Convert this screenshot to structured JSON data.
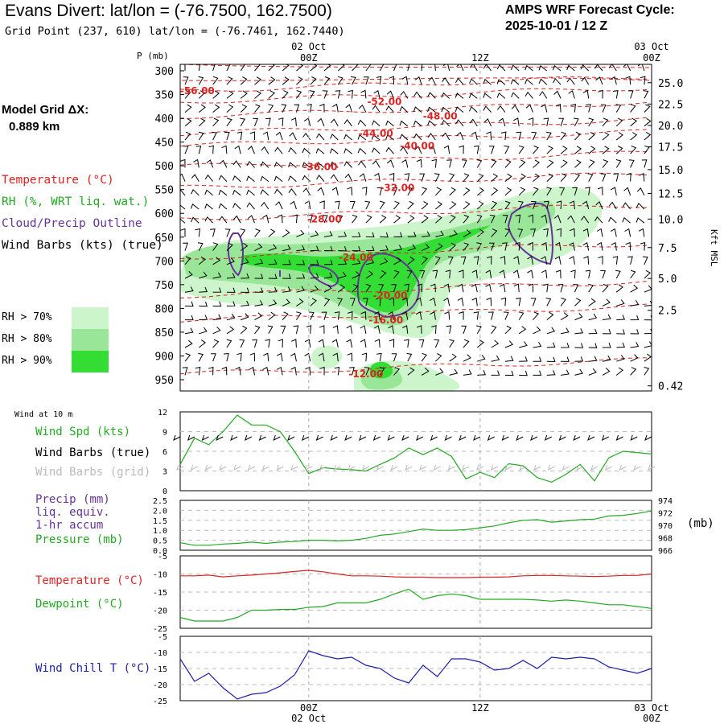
{
  "header": {
    "title": "Evans Divert:  lat/lon = (-76.7500, 162.7500)",
    "subtitle": "Grid Point (237, 610) lat/lon = (-76.7461, 162.7440)",
    "cycle_line1": "AMPS WRF Forecast Cycle:",
    "cycle_line2": "2025-10-01 / 12  Z"
  },
  "model_grid": {
    "label": "Model Grid ΔX:",
    "value": "0.889 km"
  },
  "legend": {
    "temperature": "Temperature (°C)",
    "rh": "RH (%, WRT liq. wat.)",
    "cloud": "Cloud/Precip Outline",
    "wind": "Wind Barbs (kts) (true)",
    "rh_levels": [
      "RH > 70%",
      "RH > 80%",
      "RH > 90%"
    ],
    "rh_colors": [
      "#ccf5cc",
      "#99e699",
      "#33dd33"
    ]
  },
  "colors": {
    "temperature": "#dd2222",
    "rh": "#22aa22",
    "cloud": "#663399",
    "pressure": "#22aa22",
    "windchill": "#1f1fa8",
    "grid": "#888888"
  },
  "time_axis": {
    "top_labels": [
      {
        "t": 0,
        "upper": "02 Oct",
        "lower": "00Z"
      },
      {
        "t": 12,
        "upper": "",
        "lower": "12Z"
      },
      {
        "t": 24,
        "upper": "03 Oct",
        "lower": "00Z"
      }
    ],
    "bottom_labels": [
      {
        "t": 0,
        "upper": "00Z",
        "lower": "02 Oct"
      },
      {
        "t": 12,
        "upper": "12Z",
        "lower": ""
      },
      {
        "t": 24,
        "upper": "03 Oct",
        "lower": "00Z"
      }
    ]
  },
  "chart_data": [
    {
      "type": "contour",
      "name": "cross-section",
      "x": "forecast hour (-9 to 24)",
      "y_left_title": "P (mb)",
      "y_left_ticks": [
        300,
        350,
        400,
        450,
        500,
        550,
        600,
        650,
        700,
        750,
        800,
        850,
        900,
        950
      ],
      "y_right_title": "Kft MSL",
      "y_right_ticks": [
        {
          "p": 325,
          "label": "25.0"
        },
        {
          "p": 370,
          "label": "22.5"
        },
        {
          "p": 415,
          "label": "20.0"
        },
        {
          "p": 460,
          "label": "17.5"
        },
        {
          "p": 508,
          "label": "15.0"
        },
        {
          "p": 558,
          "label": "12.5"
        },
        {
          "p": 612,
          "label": "10.0"
        },
        {
          "p": 672,
          "label": "7.5"
        },
        {
          "p": 737,
          "label": "5.0"
        },
        {
          "p": 804,
          "label": "2.5"
        },
        {
          "p": 963,
          "label": "0.42"
        }
      ],
      "temperature_labels": [
        {
          "t": -7.8,
          "p": 342,
          "label": "-56.00"
        },
        {
          "t": 5.3,
          "p": 365,
          "label": "-52.00"
        },
        {
          "t": 9.2,
          "p": 396,
          "label": "-48.00"
        },
        {
          "t": 4.7,
          "p": 432,
          "label": "-44.00"
        },
        {
          "t": 7.6,
          "p": 458,
          "label": "-40.00"
        },
        {
          "t": 0.8,
          "p": 502,
          "label": "-36.00"
        },
        {
          "t": 6.2,
          "p": 546,
          "label": "-32.00"
        },
        {
          "t": 1.1,
          "p": 612,
          "label": "-28.00"
        },
        {
          "t": 3.3,
          "p": 693,
          "label": "-24.00"
        },
        {
          "t": 5.7,
          "p": 773,
          "label": "-20.00"
        },
        {
          "t": 5.4,
          "p": 825,
          "label": "-16.00"
        },
        {
          "t": 4.0,
          "p": 938,
          "label": "-12.00"
        }
      ]
    },
    {
      "type": "line",
      "name": "wind-10m",
      "title": "Wind at 10 m",
      "series_label": "Wind Spd (kts)",
      "barb_label_true": "Wind Barbs (true)",
      "barb_label_grid": "Wind Barbs (grid)",
      "ylim": [
        0,
        12
      ],
      "yticks": [
        "12",
        "9",
        "6",
        "3",
        "0"
      ],
      "x": [
        -9,
        -8,
        -7,
        -6,
        -5,
        -4,
        -3,
        -2,
        -1,
        0,
        1,
        2,
        3,
        4,
        5,
        6,
        7,
        8,
        9,
        10,
        11,
        12,
        13,
        14,
        15,
        16,
        17,
        18,
        19,
        20,
        21,
        22,
        23,
        24
      ],
      "values": [
        4,
        8,
        7,
        9,
        11.5,
        10,
        10,
        9,
        6,
        2.6,
        3.5,
        3.3,
        3.2,
        3,
        4,
        5,
        6.5,
        5.5,
        6.5,
        5.2,
        1.8,
        2.8,
        2,
        4.1,
        3.8,
        2,
        1.3,
        2.5,
        4,
        1.5,
        5,
        6,
        5.8,
        5.6
      ]
    },
    {
      "type": "line",
      "name": "precip-pressure",
      "series_label_precip": "Precip (mm)",
      "series_label_precip2": "liq. equiv.",
      "series_label_precip3": "1-hr accum",
      "series_label_pressure": "Pressure (mb)",
      "unit_right": "(mb)",
      "ylim_left": [
        0,
        2.5
      ],
      "yticks_left": [
        "2.5",
        "2.0",
        "1.5",
        "1.0",
        "0.5",
        "0.0"
      ],
      "ylim_right": [
        966,
        974
      ],
      "yticks_right": [
        "974",
        "972",
        "970",
        "968",
        "966"
      ],
      "x": [
        -9,
        -8,
        -7,
        -6,
        -5,
        -4,
        -3,
        -2,
        -1,
        0,
        1,
        2,
        3,
        4,
        5,
        6,
        7,
        8,
        9,
        10,
        11,
        12,
        13,
        14,
        15,
        16,
        17,
        18,
        19,
        20,
        21,
        22,
        23,
        24
      ],
      "pressure": [
        967.2,
        966.8,
        966.8,
        967.0,
        967.1,
        967.3,
        967.1,
        967.3,
        967.4,
        967.6,
        967.6,
        967.5,
        967.6,
        967.9,
        968.4,
        968.6,
        969.0,
        969.4,
        969.2,
        969.2,
        969.3,
        969.6,
        969.9,
        970.4,
        970.8,
        970.9,
        970.5,
        970.7,
        970.9,
        971.0,
        971.5,
        971.6,
        971.9,
        972.3
      ]
    },
    {
      "type": "line",
      "name": "temp-dewpoint",
      "series_label_temp": "Temperature (°C)",
      "series_label_dew": "Dewpoint (°C)",
      "ylim": [
        -25,
        -5
      ],
      "yticks": [
        "-5",
        "-10",
        "-15",
        "-20",
        "-25"
      ],
      "x": [
        -9,
        -8,
        -7,
        -6,
        -5,
        -4,
        -3,
        -2,
        -1,
        0,
        1,
        2,
        3,
        4,
        5,
        6,
        7,
        8,
        9,
        10,
        11,
        12,
        13,
        14,
        15,
        16,
        17,
        18,
        19,
        20,
        21,
        22,
        23,
        24
      ],
      "temperature": [
        -10.5,
        -10.5,
        -10.3,
        -10.8,
        -10.5,
        -10.3,
        -10.0,
        -9.7,
        -9.3,
        -9.0,
        -9.4,
        -10.0,
        -10.5,
        -10.5,
        -10.6,
        -10.8,
        -10.9,
        -10.9,
        -11.0,
        -11.0,
        -11.0,
        -10.9,
        -10.9,
        -10.8,
        -10.5,
        -10.4,
        -10.4,
        -10.5,
        -10.6,
        -10.7,
        -10.6,
        -10.4,
        -10.4,
        -10.0
      ],
      "dewpoint": [
        -22,
        -23,
        -23,
        -23,
        -22,
        -20,
        -20,
        -19.8,
        -19.8,
        -19.2,
        -19,
        -18,
        -18,
        -18,
        -17,
        -15.5,
        -14.2,
        -17,
        -16,
        -15.5,
        -16,
        -17,
        -17,
        -17,
        -17,
        -17.2,
        -17.5,
        -17.2,
        -17.5,
        -18,
        -18.5,
        -18.5,
        -19,
        -19.5
      ]
    },
    {
      "type": "line",
      "name": "wind-chill",
      "series_label": "Wind Chill T (°C)",
      "ylim": [
        -25,
        -5
      ],
      "yticks": [
        "-5",
        "-10",
        "-15",
        "-20",
        "-25"
      ],
      "x": [
        -9,
        -8,
        -7,
        -6,
        -5,
        -4,
        -3,
        -2,
        -1,
        0,
        1,
        2,
        3,
        4,
        5,
        6,
        7,
        8,
        9,
        10,
        11,
        12,
        13,
        14,
        15,
        16,
        17,
        18,
        19,
        20,
        21,
        22,
        23,
        24
      ],
      "values": [
        -12,
        -19,
        -16.5,
        -21,
        -24.5,
        -23,
        -22.5,
        -20.5,
        -17,
        -9.5,
        -11,
        -12,
        -11.5,
        -14,
        -15,
        -18,
        -19.5,
        -14,
        -17.5,
        -12,
        -12,
        -13,
        -15.5,
        -15,
        -12.5,
        -15,
        -11.5,
        -12,
        -11.5,
        -12,
        -14.5,
        -15.5,
        -16.5,
        -15
      ]
    }
  ]
}
